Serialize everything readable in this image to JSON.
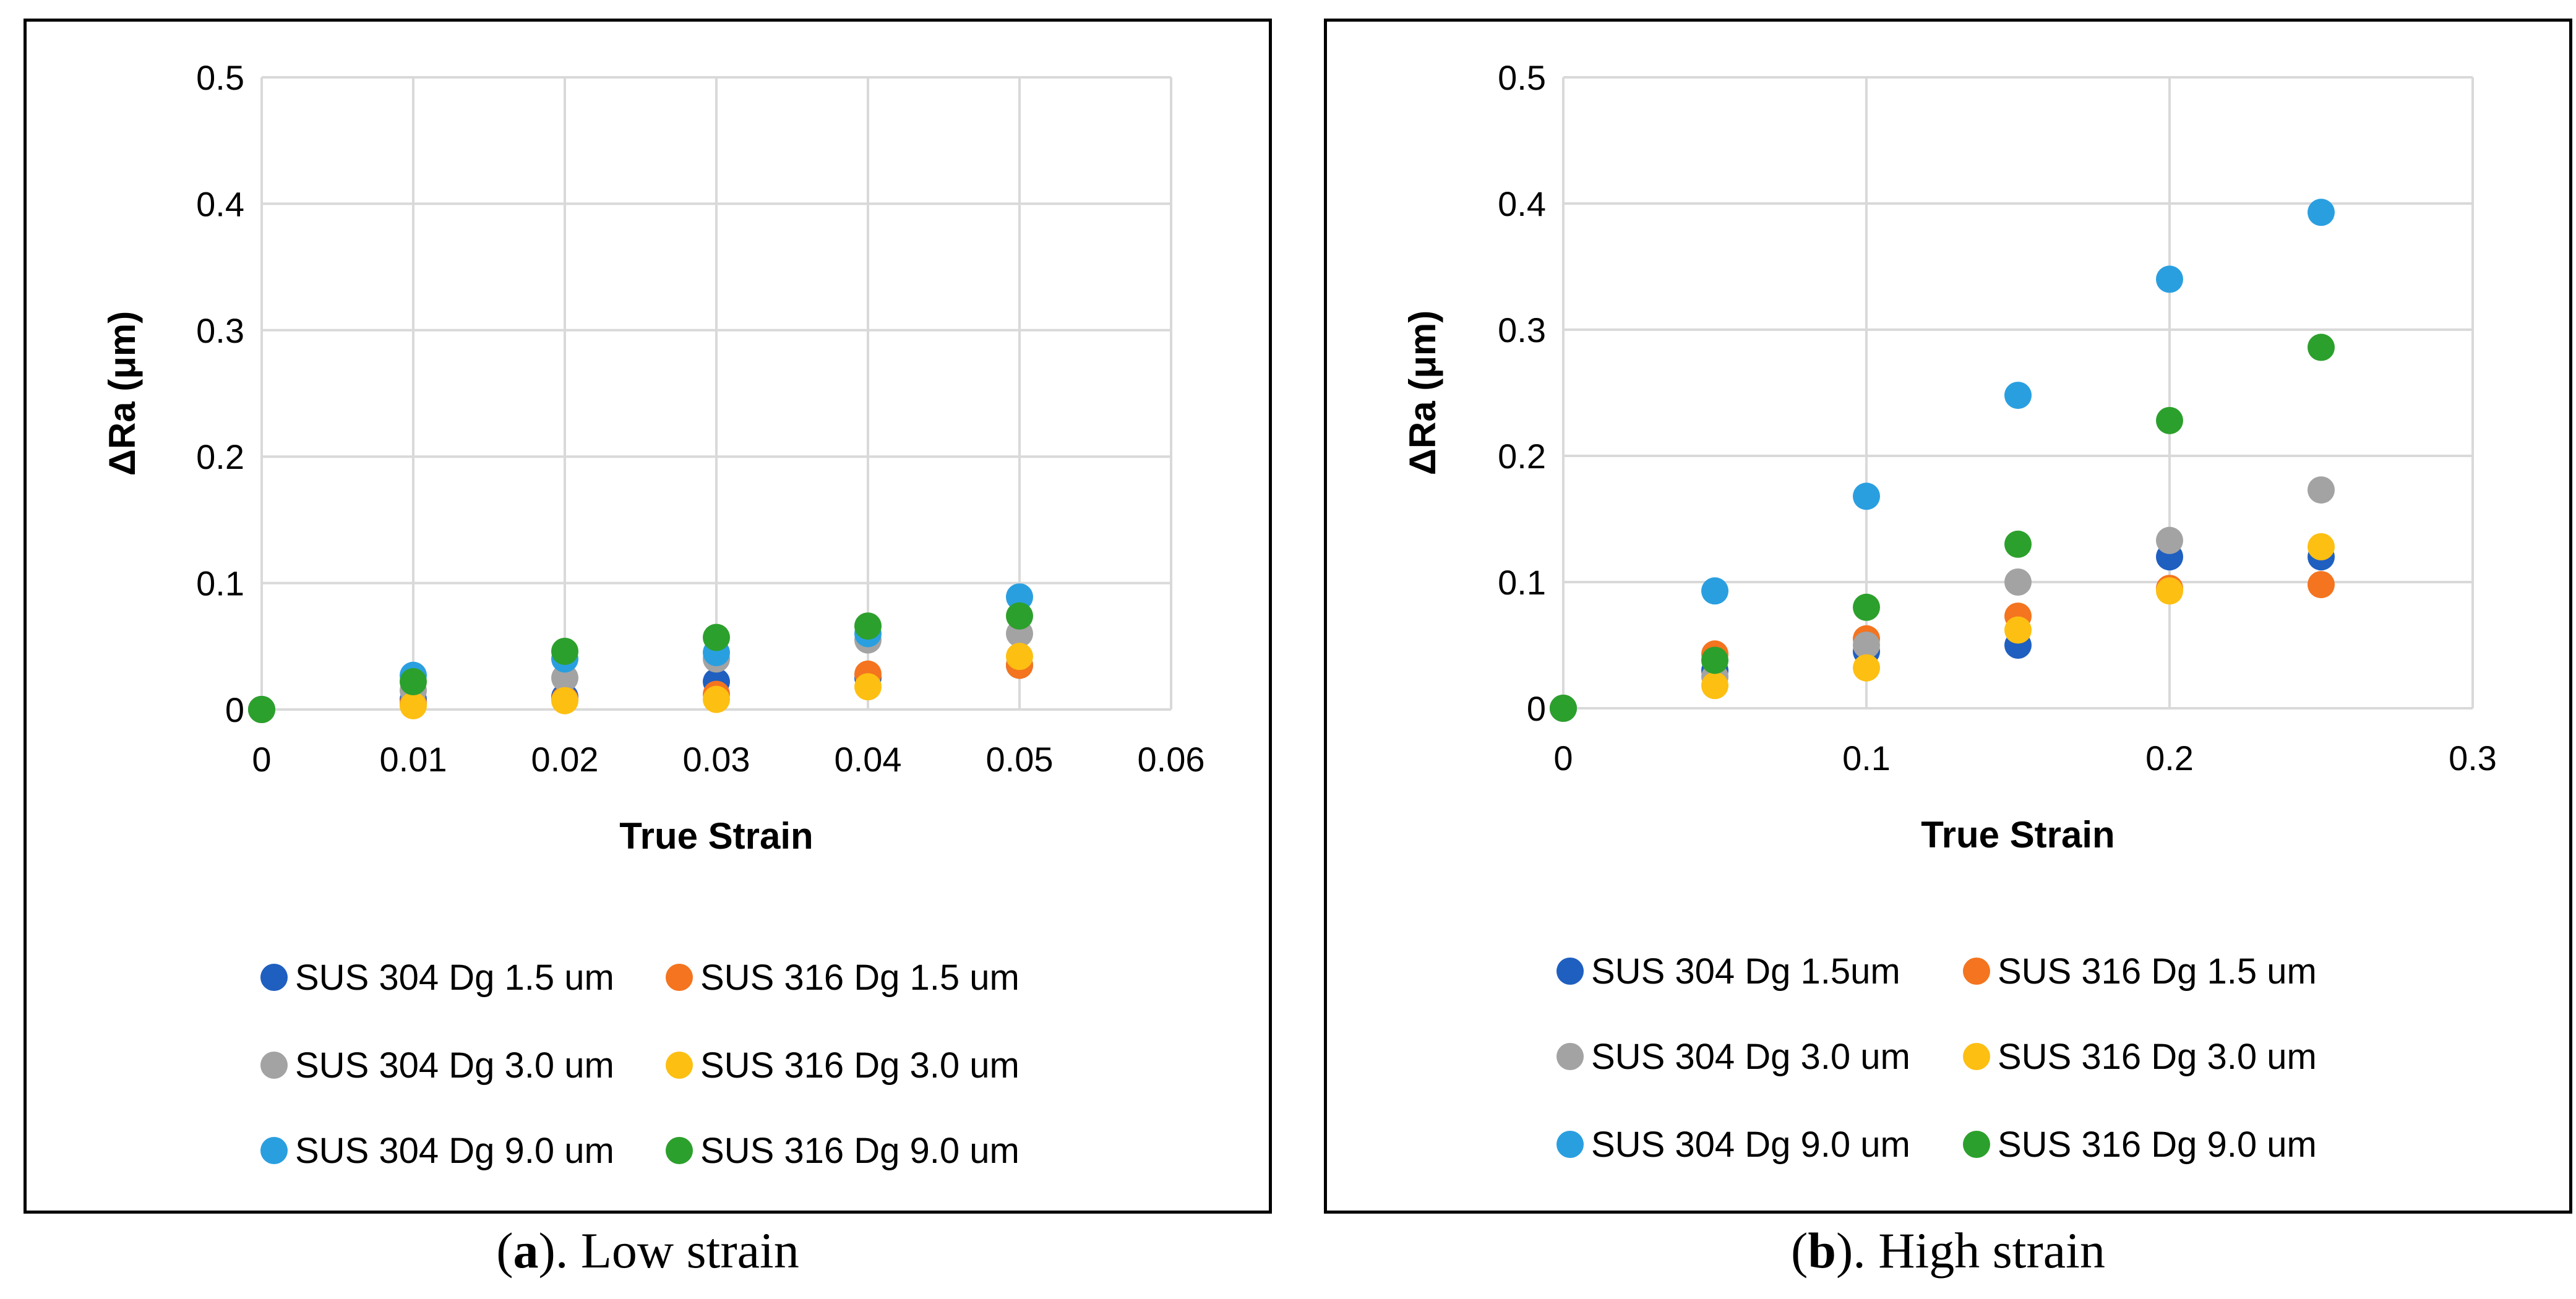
{
  "colors": {
    "SUS 304 Dg 1.5 um": "#1f5fc0",
    "SUS 316 Dg 1.5 um": "#f4741f",
    "SUS 304 Dg 3.0 um": "#a3a3a3",
    "SUS 316 Dg 3.0 um": "#fdbf12",
    "SUS 304 Dg 9.0 um": "#2a9fe0",
    "SUS 316 Dg 9.0 um": "#2ca02c"
  },
  "captions": [
    {
      "letter": "a",
      "rest": ". Low strain",
      "open": "("
    },
    {
      "letter": "b",
      "rest": ". High strain",
      "open": "("
    }
  ],
  "chart_data": [
    {
      "type": "scatter",
      "xlabel": "True Strain",
      "ylabel": "ΔRa (μm)",
      "xlim": [
        0,
        0.06
      ],
      "ylim": [
        0,
        0.5
      ],
      "x_ticks": [
        "0",
        "0.01",
        "0.02",
        "0.03",
        "0.04",
        "0.05",
        "0.06"
      ],
      "y_ticks": [
        "0",
        "0.1",
        "0.2",
        "0.3",
        "0.4",
        "0.5"
      ],
      "grid": true,
      "legend_position": "bottom",
      "series": [
        {
          "name": "SUS 304 Dg 1.5 um",
          "color_key": "SUS 304 Dg 1.5 um",
          "x": [
            0,
            0.01,
            0.02,
            0.03,
            0.04,
            0.05
          ],
          "y": [
            0,
            0.008,
            0.01,
            0.022,
            0.025,
            0.035
          ]
        },
        {
          "name": "SUS 316 Dg 1.5 um",
          "color_key": "SUS 316 Dg 1.5 um",
          "x": [
            0,
            0.01,
            0.02,
            0.03,
            0.04,
            0.05
          ],
          "y": [
            0,
            0.005,
            0.008,
            0.012,
            0.028,
            0.035
          ]
        },
        {
          "name": "SUS 304 Dg 3.0 um",
          "color_key": "SUS 304 Dg 3.0 um",
          "x": [
            0,
            0.01,
            0.02,
            0.03,
            0.04,
            0.05
          ],
          "y": [
            0,
            0.015,
            0.025,
            0.04,
            0.055,
            0.06
          ]
        },
        {
          "name": "SUS 316 Dg 3.0 um",
          "color_key": "SUS 316 Dg 3.0 um",
          "x": [
            0,
            0.01,
            0.02,
            0.03,
            0.04,
            0.05
          ],
          "y": [
            0,
            0.003,
            0.007,
            0.008,
            0.018,
            0.042
          ]
        },
        {
          "name": "SUS 304 Dg 9.0 um",
          "color_key": "SUS 304 Dg 9.0 um",
          "x": [
            0,
            0.01,
            0.02,
            0.03,
            0.04,
            0.05
          ],
          "y": [
            0,
            0.027,
            0.04,
            0.045,
            0.06,
            0.089
          ]
        },
        {
          "name": "SUS 316 Dg 9.0 um",
          "color_key": "SUS 316 Dg 9.0 um",
          "x": [
            0,
            0.01,
            0.02,
            0.03,
            0.04,
            0.05
          ],
          "y": [
            0,
            0.022,
            0.046,
            0.057,
            0.066,
            0.074
          ]
        }
      ]
    },
    {
      "type": "scatter",
      "xlabel": "True Strain",
      "ylabel": "ΔRa (μm)",
      "xlim": [
        0,
        0.3
      ],
      "ylim": [
        0,
        0.5
      ],
      "x_ticks": [
        "0",
        "0.1",
        "0.2",
        "0.3"
      ],
      "y_ticks": [
        "0",
        "0.1",
        "0.2",
        "0.3",
        "0.4",
        "0.5"
      ],
      "grid": true,
      "legend_position": "bottom",
      "series": [
        {
          "name": "SUS 304 Dg 1.5um",
          "color_key": "SUS 304 Dg 1.5 um",
          "x": [
            0,
            0.05,
            0.1,
            0.15,
            0.2,
            0.25
          ],
          "y": [
            0,
            0.03,
            0.045,
            0.05,
            0.12,
            0.12
          ]
        },
        {
          "name": "SUS 316 Dg 1.5 um",
          "color_key": "SUS 316 Dg 1.5 um",
          "x": [
            0,
            0.05,
            0.1,
            0.15,
            0.2,
            0.25
          ],
          "y": [
            0,
            0.043,
            0.055,
            0.073,
            0.095,
            0.098
          ]
        },
        {
          "name": "SUS 304 Dg 3.0 um",
          "color_key": "SUS 304 Dg 3.0 um",
          "x": [
            0,
            0.05,
            0.1,
            0.15,
            0.2,
            0.25
          ],
          "y": [
            0,
            0.025,
            0.05,
            0.1,
            0.133,
            0.173
          ]
        },
        {
          "name": "SUS 316 Dg 3.0 um",
          "color_key": "SUS 316 Dg 3.0 um",
          "x": [
            0,
            0.05,
            0.1,
            0.15,
            0.2,
            0.25
          ],
          "y": [
            0,
            0.018,
            0.032,
            0.062,
            0.093,
            0.128
          ]
        },
        {
          "name": "SUS 304 Dg 9.0 um",
          "color_key": "SUS 304 Dg 9.0 um",
          "x": [
            0,
            0.05,
            0.1,
            0.15,
            0.2,
            0.25
          ],
          "y": [
            0,
            0.093,
            0.168,
            0.248,
            0.34,
            0.393
          ]
        },
        {
          "name": "SUS 316 Dg 9.0 um",
          "color_key": "SUS 316 Dg 9.0 um",
          "x": [
            0,
            0.05,
            0.1,
            0.15,
            0.2,
            0.25
          ],
          "y": [
            0,
            0.038,
            0.08,
            0.13,
            0.228,
            0.286
          ]
        }
      ]
    }
  ]
}
